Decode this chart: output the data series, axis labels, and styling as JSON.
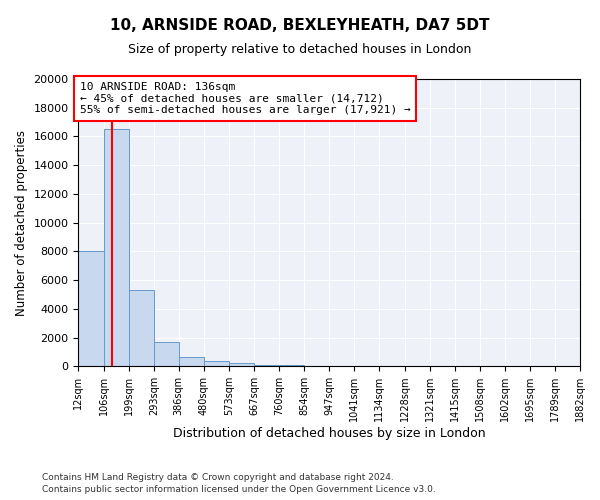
{
  "title1": "10, ARNSIDE ROAD, BEXLEYHEATH, DA7 5DT",
  "title2": "Size of property relative to detached houses in London",
  "xlabel": "Distribution of detached houses by size in London",
  "ylabel": "Number of detached properties",
  "bin_edges": [
    12,
    106,
    199,
    293,
    386,
    480,
    573,
    667,
    760,
    854,
    947,
    1041,
    1134,
    1228,
    1321,
    1415,
    1508,
    1602,
    1695,
    1789,
    1882
  ],
  "bar_heights": [
    8050,
    16500,
    5300,
    1700,
    650,
    350,
    200,
    100,
    55,
    35,
    22,
    15,
    10,
    8,
    5,
    3,
    2,
    1,
    1,
    0
  ],
  "bar_color": "#c8d8ee",
  "bar_edge_color": "#6699cc",
  "red_line_x": 136,
  "annotation_line1": "10 ARNSIDE ROAD: 136sqm",
  "annotation_line2": "← 45% of detached houses are smaller (14,712)",
  "annotation_line3": "55% of semi-detached houses are larger (17,921) →",
  "annotation_box_color": "white",
  "annotation_box_edge": "red",
  "ylim": [
    0,
    20000
  ],
  "yticks": [
    0,
    2000,
    4000,
    6000,
    8000,
    10000,
    12000,
    14000,
    16000,
    18000,
    20000
  ],
  "footer1": "Contains HM Land Registry data © Crown copyright and database right 2024.",
  "footer2": "Contains public sector information licensed under the Open Government Licence v3.0.",
  "background_color": "#eef1f8"
}
